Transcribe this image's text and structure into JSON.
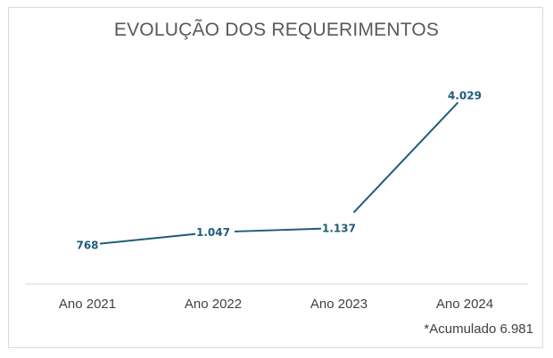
{
  "chart_data": {
    "type": "line",
    "title": "EVOLUÇÃO DOS REQUERIMENTOS",
    "categories": [
      "Ano 2021",
      "Ano 2022",
      "Ano 2023",
      "Ano 2024"
    ],
    "series": [
      {
        "values": [
          768,
          1047,
          1137,
          4029
        ],
        "data_labels": [
          "768",
          "1.047",
          "1.137",
          "4.029"
        ],
        "color": "#1f5c7a"
      }
    ],
    "xlabel": "",
    "ylabel": "",
    "ylim": [
      0,
      4500
    ],
    "grid": false,
    "legend": "none",
    "annotation": "*Acumulado 6.981"
  }
}
